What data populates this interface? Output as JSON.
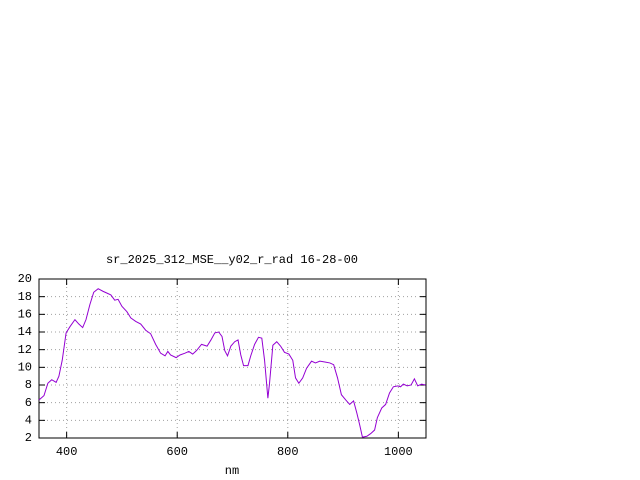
{
  "chart_data": {
    "type": "line",
    "title": "sr_2025_312_MSE__y02_r_rad 16-28-00",
    "x_label": "nm",
    "x": [
      350,
      359,
      366,
      373,
      381,
      386,
      392,
      399,
      406,
      415,
      422,
      429,
      435,
      442,
      449,
      457,
      466,
      473,
      480,
      487,
      493,
      500,
      509,
      516,
      525,
      534,
      543,
      552,
      561,
      570,
      578,
      583,
      588,
      598,
      605,
      614,
      621,
      628,
      635,
      644,
      654,
      661,
      668,
      675,
      681,
      686,
      691,
      697,
      704,
      710,
      715,
      720,
      728,
      733,
      740,
      747,
      753,
      758,
      764,
      767,
      773,
      780,
      787,
      794,
      802,
      809,
      814,
      820,
      827,
      834,
      843,
      850,
      858,
      867,
      876,
      883,
      890,
      897,
      905,
      912,
      919,
      925,
      930,
      935,
      943,
      950,
      957,
      962,
      970,
      977,
      984,
      991,
      999,
      1004,
      1009,
      1016,
      1023,
      1029,
      1035,
      1042,
      1049
    ],
    "series": [
      {
        "color": "#9400d3",
        "values": [
          6.3,
          6.8,
          8.2,
          8.6,
          8.3,
          9.0,
          10.8,
          13.9,
          14.6,
          15.4,
          14.9,
          14.5,
          15.4,
          17.1,
          18.5,
          18.9,
          18.6,
          18.4,
          18.2,
          17.6,
          17.7,
          16.9,
          16.3,
          15.6,
          15.2,
          14.9,
          14.2,
          13.8,
          12.6,
          11.6,
          11.3,
          11.8,
          11.4,
          11.1,
          11.4,
          11.6,
          11.8,
          11.5,
          11.9,
          12.6,
          12.4,
          13.1,
          13.9,
          14.0,
          13.5,
          11.9,
          11.3,
          12.4,
          12.9,
          13.1,
          11.4,
          10.2,
          10.2,
          11.3,
          12.6,
          13.4,
          13.3,
          10.8,
          6.5,
          8.2,
          12.5,
          12.9,
          12.4,
          11.7,
          11.5,
          10.8,
          8.8,
          8.2,
          8.8,
          9.9,
          10.7,
          10.5,
          10.7,
          10.6,
          10.5,
          10.3,
          8.8,
          6.9,
          6.3,
          5.8,
          6.2,
          4.8,
          3.5,
          2.1,
          2.2,
          2.5,
          2.9,
          4.3,
          5.4,
          5.8,
          7.1,
          7.8,
          7.9,
          7.8,
          8.1,
          7.9,
          8.0,
          8.7,
          7.9,
          8.1,
          8.0
        ]
      }
    ],
    "xlim": [
      350,
      1050
    ],
    "ylim": [
      2,
      20
    ],
    "xticks": [
      400,
      600,
      800,
      1000
    ],
    "yticks": [
      2,
      4,
      6,
      8,
      10,
      12,
      14,
      16,
      18,
      20
    ],
    "grid": true
  }
}
